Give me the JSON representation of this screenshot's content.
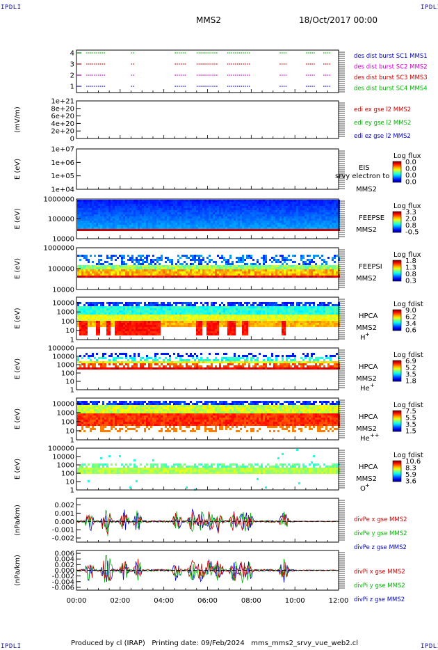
{
  "header": {
    "title": "MMS2",
    "date": "18/Oct/2017 00:00"
  },
  "corners": {
    "tl": "IPDLI",
    "tr": "IPDLI",
    "bl": "IPDLI",
    "br": "IPDLI"
  },
  "footer": "Produced by cl (IRAP)   Printing date: 09/Feb/2024   mms_mms2_srvy_vue_web2.cl",
  "chart_data": [
    {
      "type": "scatter",
      "panel": "burst-availability",
      "yticks": [
        "1",
        "2",
        "3",
        "4"
      ],
      "ylim": [
        0.5,
        4.5
      ],
      "legend": [
        {
          "text": "des dist burst SC1 MMS1",
          "color": "#0000c8"
        },
        {
          "text": "des dist burst SC2 MMS2",
          "color": "#d000d0"
        },
        {
          "text": "des dist burst SC3 MMS3",
          "color": "#d00000"
        },
        {
          "text": "des dist burst SC4 MMS4",
          "color": "#00b400"
        }
      ]
    },
    {
      "type": "line",
      "panel": "edi-e-field",
      "ylabel": "(mV/m)",
      "yticks": [
        "0",
        "2e+20",
        "4e+20",
        "6e+20",
        "8e+20",
        "1e+21"
      ],
      "ylim": [
        0,
        1e+21
      ],
      "legend": [
        {
          "text": "edi ex gse l2 MMS2",
          "color": "#d00000"
        },
        {
          "text": "edi ey gse l2 MMS2",
          "color": "#00b400"
        },
        {
          "text": "edi ez gse l2 MMS2",
          "color": "#0000c8"
        }
      ]
    },
    {
      "type": "heatmap",
      "panel": "eis",
      "ylabel": "E (eV)",
      "yticks": [
        "1e+04",
        "1e+05",
        "1e+06",
        "1e+07"
      ],
      "ylim": [
        10000.0,
        10000000.0
      ],
      "log": true,
      "labels": [
        "EIS",
        "MMS2"
      ],
      "overlay": "srvy electron to",
      "cbar_title": "Log flux",
      "cbar_ticks": [
        "0.0",
        "0.0",
        "0.0",
        "0.0"
      ]
    },
    {
      "type": "heatmap",
      "panel": "feepse",
      "ylabel": "E (eV)",
      "yticks": [
        "10000",
        "100000",
        "1000000"
      ],
      "ylim": [
        10000.0,
        1000000.0
      ],
      "log": true,
      "labels": [
        "FEEPSE",
        "MMS2"
      ],
      "cbar_title": "Log flux",
      "cbar_ticks": [
        "3.3",
        "2.0",
        "0.8",
        "-0.5"
      ]
    },
    {
      "type": "heatmap",
      "panel": "feepsi",
      "ylabel": "E (eV)",
      "yticks": [
        "10000",
        "100000",
        "1000000"
      ],
      "ylim": [
        10000.0,
        1000000.0
      ],
      "log": true,
      "labels": [
        "FEEPSI",
        "MMS2"
      ],
      "cbar_title": "Log flux",
      "cbar_ticks": [
        "1.8",
        "1.3",
        "0.8",
        "0.3"
      ]
    },
    {
      "type": "heatmap",
      "panel": "hpca-h",
      "ylabel": "E (eV)",
      "yticks": [
        "1",
        "10",
        "100",
        "1000",
        "10000"
      ],
      "ylim": [
        1,
        40000
      ],
      "log": true,
      "labels": [
        "HPCA",
        "MMS2"
      ],
      "species": "H",
      "species_sup": "+",
      "cbar_title": "Log fdist",
      "cbar_ticks": [
        "9.0",
        "6.2",
        "3.4",
        "0.6"
      ]
    },
    {
      "type": "heatmap",
      "panel": "hpca-he",
      "ylabel": "E (eV)",
      "yticks": [
        "1",
        "10",
        "100",
        "1000",
        "10000",
        "100000"
      ],
      "ylim": [
        1,
        100000
      ],
      "log": true,
      "labels": [
        "HPCA",
        "MMS2"
      ],
      "species": "He",
      "species_sup": "+",
      "cbar_title": "Log fdist",
      "cbar_ticks": [
        "6.9",
        "5.2",
        "3.5",
        "1.8"
      ]
    },
    {
      "type": "heatmap",
      "panel": "hpca-hepp",
      "ylabel": "E (eV)",
      "yticks": [
        "1",
        "10",
        "100",
        "1000",
        "10000"
      ],
      "ylim": [
        1,
        40000
      ],
      "log": true,
      "labels": [
        "HPCA",
        "MMS2"
      ],
      "species": "He",
      "species_sup": "++",
      "cbar_title": "Log fdist",
      "cbar_ticks": [
        "7.5",
        "5.5",
        "3.5",
        "1.5"
      ]
    },
    {
      "type": "heatmap",
      "panel": "hpca-o",
      "ylabel": "E (eV)",
      "yticks": [
        "1",
        "10",
        "100",
        "1000",
        "10000",
        "100000"
      ],
      "ylim": [
        1,
        100000
      ],
      "log": true,
      "labels": [
        "HPCA",
        "MMS2"
      ],
      "species": "O",
      "species_sup": "+",
      "cbar_title": "Log fdist",
      "cbar_ticks": [
        "10.6",
        "8.3",
        "5.9",
        "3.6"
      ]
    },
    {
      "type": "line",
      "panel": "divpe",
      "ylabel": "(nPa/km)",
      "yticks": [
        "-0.002",
        "-0.001",
        "0.000",
        "0.001",
        "0.002"
      ],
      "ylim": [
        -0.0025,
        0.0028
      ],
      "legend": [
        {
          "text": "divPe x gse MMS2",
          "color": "#d00000"
        },
        {
          "text": "divPe y gse MMS2",
          "color": "#00b400"
        },
        {
          "text": "divPe z gse MMS2",
          "color": "#0000c8"
        }
      ]
    },
    {
      "type": "line",
      "panel": "divpi",
      "ylabel": "(nPa/km)",
      "yticks": [
        "-0.006",
        "-0.004",
        "-0.002",
        "0.000",
        "0.002",
        "0.004",
        "0.006"
      ],
      "ylim": [
        -0.007,
        0.007
      ],
      "legend": [
        {
          "text": "divPi x gse MMS2",
          "color": "#d00000"
        },
        {
          "text": "divPi y gse MMS2",
          "color": "#00b400"
        },
        {
          "text": "divPi z gse MMS2",
          "color": "#0000c8"
        }
      ]
    }
  ],
  "xaxis": {
    "ticks": [
      "00:00",
      "02:00",
      "04:00",
      "06:00",
      "08:00",
      "10:00",
      "12:00"
    ],
    "xlim_hours": [
      0,
      12
    ]
  }
}
